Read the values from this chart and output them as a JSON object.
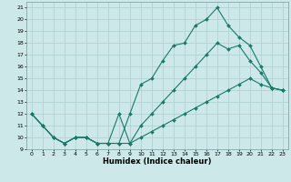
{
  "xlabel": "Humidex (Indice chaleur)",
  "bg_color": "#cce8e8",
  "grid_color": "#aacfcf",
  "line_color": "#1a7a6a",
  "xlim": [
    -0.5,
    23.5
  ],
  "ylim": [
    9,
    21.5
  ],
  "yticks": [
    9,
    10,
    11,
    12,
    13,
    14,
    15,
    16,
    17,
    18,
    19,
    20,
    21
  ],
  "xticks": [
    0,
    1,
    2,
    3,
    4,
    5,
    6,
    7,
    8,
    9,
    10,
    11,
    12,
    13,
    14,
    15,
    16,
    17,
    18,
    19,
    20,
    21,
    22,
    23
  ],
  "series1_x": [
    0,
    1,
    2,
    3,
    4,
    5,
    6,
    7,
    8,
    9,
    10,
    11,
    12,
    13,
    14,
    15,
    16,
    17,
    18,
    19,
    20,
    21,
    22,
    23
  ],
  "series1_y": [
    12,
    11,
    10,
    9.5,
    10,
    10,
    9.5,
    9.5,
    9.5,
    12,
    14.5,
    15,
    16.5,
    17.8,
    18,
    19.5,
    20,
    21,
    19.5,
    18.5,
    17.8,
    16,
    14.2,
    14
  ],
  "series2_x": [
    0,
    1,
    2,
    3,
    4,
    5,
    6,
    7,
    8,
    9,
    10,
    11,
    12,
    13,
    14,
    15,
    16,
    17,
    18,
    19,
    20,
    21,
    22,
    23
  ],
  "series2_y": [
    12,
    11,
    10,
    9.5,
    10,
    10,
    9.5,
    9.5,
    12,
    9.5,
    11,
    12,
    13,
    14,
    15,
    16,
    17,
    18,
    17.5,
    17.8,
    16.5,
    15.5,
    14.2,
    14
  ],
  "series3_x": [
    0,
    1,
    2,
    3,
    4,
    5,
    6,
    7,
    8,
    9,
    10,
    11,
    12,
    13,
    14,
    15,
    16,
    17,
    18,
    19,
    20,
    21,
    22,
    23
  ],
  "series3_y": [
    12,
    11,
    10,
    9.5,
    10,
    10,
    9.5,
    9.5,
    9.5,
    9.5,
    10,
    10.5,
    11,
    11.5,
    12,
    12.5,
    13,
    13.5,
    14,
    14.5,
    15,
    14.5,
    14.2,
    14
  ]
}
